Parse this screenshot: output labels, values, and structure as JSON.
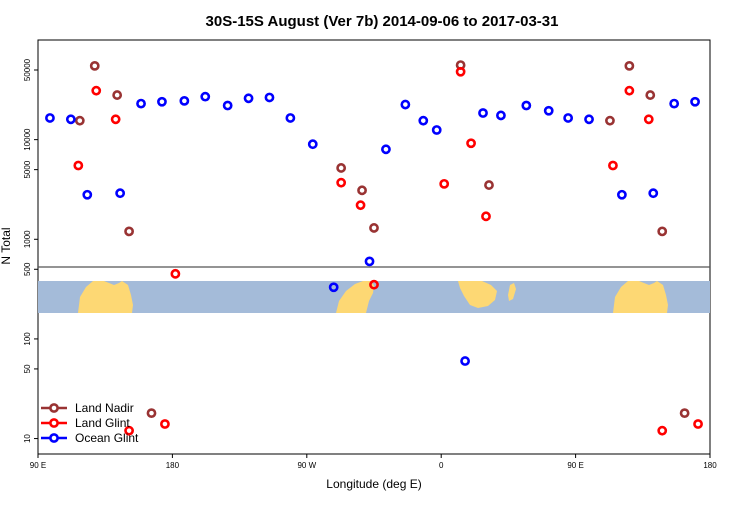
{
  "chart_data": {
    "type": "scatter",
    "title": "30S-15S August (Ver 7b)   2014-09-06 to 2017-03-31",
    "xlabel": "Longitude (deg E)",
    "ylabel": "N Total",
    "xlim": [
      90,
      540
    ],
    "ylim": [
      7,
      100000
    ],
    "yscale": "log",
    "x_ticks": [
      {
        "value": 90,
        "label": "90 E"
      },
      {
        "value": 180,
        "label": "180"
      },
      {
        "value": 270,
        "label": "90 W"
      },
      {
        "value": 360,
        "label": "0"
      },
      {
        "value": 450,
        "label": "90 E"
      },
      {
        "value": 540,
        "label": "180"
      }
    ],
    "y_ticks": [
      {
        "value": 10,
        "label": "10"
      },
      {
        "value": 50,
        "label": "50"
      },
      {
        "value": 100,
        "label": "100"
      },
      {
        "value": 500,
        "label": "500"
      },
      {
        "value": 1000,
        "label": "1000"
      },
      {
        "value": 5000,
        "label": "5000"
      },
      {
        "value": 10000,
        "label": "10000"
      },
      {
        "value": 50000,
        "label": "50000"
      }
    ],
    "legend_position": "bottom-left",
    "series": [
      {
        "name": "Land Nadir",
        "color": "#993333",
        "points": [
          {
            "x": 118,
            "y": 15500
          },
          {
            "x": 128,
            "y": 55000
          },
          {
            "x": 143,
            "y": 28000
          },
          {
            "x": 151,
            "y": 1200
          },
          {
            "x": 166,
            "y": 18
          },
          {
            "x": 293,
            "y": 5200
          },
          {
            "x": 307,
            "y": 3100
          },
          {
            "x": 315,
            "y": 1300
          },
          {
            "x": 373,
            "y": 56000
          },
          {
            "x": 392,
            "y": 3500
          },
          {
            "x": 473,
            "y": 15500
          },
          {
            "x": 486,
            "y": 55000
          },
          {
            "x": 500,
            "y": 28000
          },
          {
            "x": 508,
            "y": 1200
          },
          {
            "x": 523,
            "y": 18
          }
        ]
      },
      {
        "name": "Land Glint",
        "color": "#ff0000",
        "points": [
          {
            "x": 117,
            "y": 5500
          },
          {
            "x": 129,
            "y": 31000
          },
          {
            "x": 142,
            "y": 16000
          },
          {
            "x": 151,
            "y": 12
          },
          {
            "x": 175,
            "y": 14
          },
          {
            "x": 182,
            "y": 450
          },
          {
            "x": 293,
            "y": 3700
          },
          {
            "x": 306,
            "y": 2200
          },
          {
            "x": 315,
            "y": 350
          },
          {
            "x": 362,
            "y": 3600
          },
          {
            "x": 373,
            "y": 48000
          },
          {
            "x": 380,
            "y": 9200
          },
          {
            "x": 390,
            "y": 1700
          },
          {
            "x": 475,
            "y": 5500
          },
          {
            "x": 486,
            "y": 31000
          },
          {
            "x": 499,
            "y": 16000
          },
          {
            "x": 508,
            "y": 12
          },
          {
            "x": 532,
            "y": 14
          }
        ]
      },
      {
        "name": "Ocean Glint",
        "color": "#0000ff",
        "points": [
          {
            "x": 98,
            "y": 16500
          },
          {
            "x": 112,
            "y": 16000
          },
          {
            "x": 123,
            "y": 2800
          },
          {
            "x": 145,
            "y": 2900
          },
          {
            "x": 159,
            "y": 23000
          },
          {
            "x": 173,
            "y": 24000
          },
          {
            "x": 188,
            "y": 24500
          },
          {
            "x": 202,
            "y": 27000
          },
          {
            "x": 217,
            "y": 22000
          },
          {
            "x": 231,
            "y": 26000
          },
          {
            "x": 245,
            "y": 26500
          },
          {
            "x": 259,
            "y": 16500
          },
          {
            "x": 274,
            "y": 9000
          },
          {
            "x": 288,
            "y": 330
          },
          {
            "x": 312,
            "y": 600
          },
          {
            "x": 323,
            "y": 8000
          },
          {
            "x": 336,
            "y": 22500
          },
          {
            "x": 348,
            "y": 15500
          },
          {
            "x": 357,
            "y": 12500
          },
          {
            "x": 376,
            "y": 60
          },
          {
            "x": 388,
            "y": 18500
          },
          {
            "x": 400,
            "y": 17500
          },
          {
            "x": 417,
            "y": 22000
          },
          {
            "x": 432,
            "y": 19500
          },
          {
            "x": 445,
            "y": 16500
          },
          {
            "x": 459,
            "y": 16000
          },
          {
            "x": 481,
            "y": 2800
          },
          {
            "x": 502,
            "y": 2900
          },
          {
            "x": 516,
            "y": 23000
          },
          {
            "x": 530,
            "y": 24000
          }
        ]
      }
    ]
  }
}
